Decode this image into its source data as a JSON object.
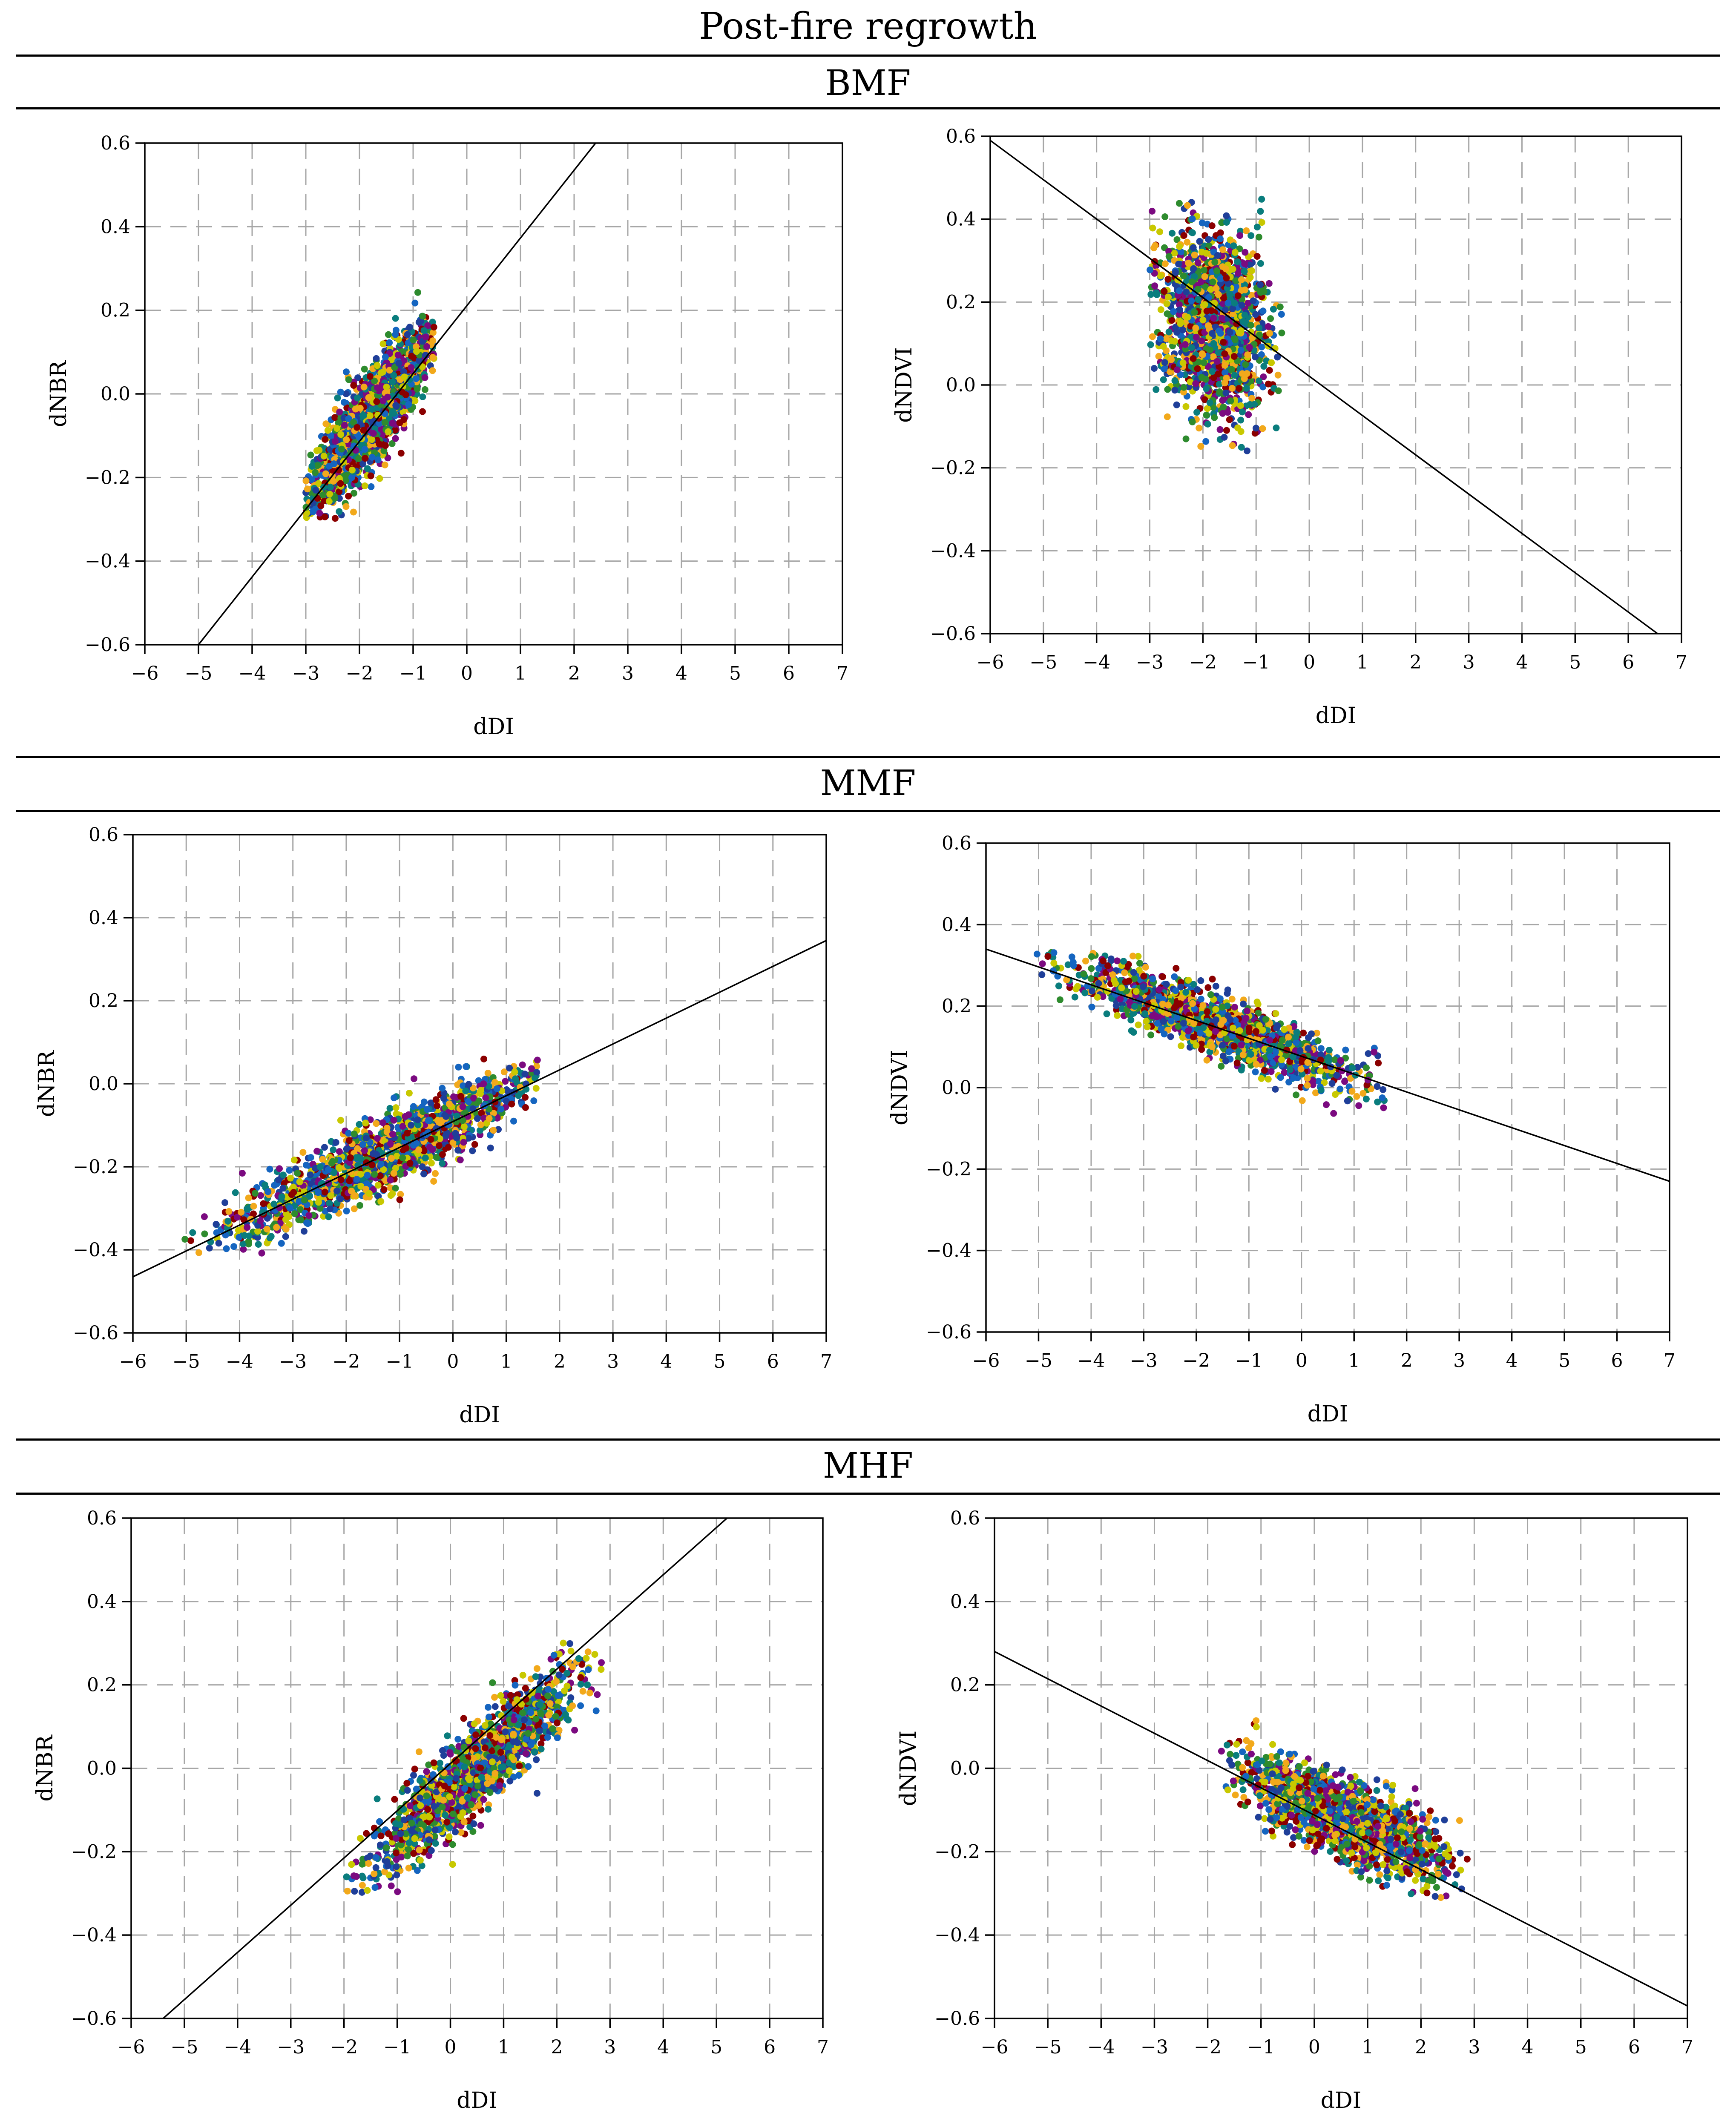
{
  "figure": {
    "title": "Post-fire regrowth",
    "sections": [
      "BMF",
      "MMF",
      "MHF"
    ]
  },
  "point_palette": [
    "#7b0a80",
    "#0a7d7d",
    "#1f3f99",
    "#f2a91b",
    "#2e8b2e",
    "#8b0000",
    "#c8c800",
    "#1565c0"
  ],
  "chart_data": [
    {
      "id": "bmf-dnbr",
      "section": "BMF",
      "type": "scatter",
      "xlabel": "dDI",
      "ylabel": "dNBR",
      "xlim": [
        -6,
        7
      ],
      "ylim": [
        -0.6,
        0.6
      ],
      "xticks": [
        -6,
        -5,
        -4,
        -3,
        -2,
        -1,
        0,
        1,
        2,
        3,
        4,
        5,
        6,
        7
      ],
      "yticks": [
        -0.6,
        -0.4,
        -0.2,
        0.0,
        0.2,
        0.4,
        0.6
      ],
      "grid": true,
      "fit_line": {
        "x": [
          -5.0,
          2.4
        ],
        "y": [
          -0.6,
          0.6
        ]
      },
      "cluster": {
        "center": [
          -1.8,
          -0.06
        ],
        "slope": 0.162,
        "spread_x": 0.6,
        "spread_y": 0.055,
        "x_range": [
          -3.0,
          -0.6
        ],
        "y_range": [
          -0.3,
          0.33
        ],
        "n": 1700
      }
    },
    {
      "id": "bmf-dndvi",
      "section": "BMF",
      "type": "scatter",
      "xlabel": "dDI",
      "ylabel": "dNDVI",
      "xlim": [
        -6,
        7
      ],
      "ylim": [
        -0.6,
        0.6
      ],
      "xticks": [
        -6,
        -5,
        -4,
        -3,
        -2,
        -1,
        0,
        1,
        2,
        3,
        4,
        5,
        6,
        7
      ],
      "yticks": [
        -0.6,
        -0.4,
        -0.2,
        0.0,
        0.2,
        0.4,
        0.6
      ],
      "grid": true,
      "fit_line": {
        "x": [
          -6.0,
          6.55
        ],
        "y": [
          0.59,
          -0.6
        ]
      },
      "cluster": {
        "center": [
          -1.8,
          0.15
        ],
        "slope": -0.03,
        "spread_x": 0.5,
        "spread_y": 0.11,
        "x_range": [
          -3.0,
          -0.5
        ],
        "y_range": [
          -0.23,
          0.45
        ],
        "n": 1700
      }
    },
    {
      "id": "mmf-dnbr",
      "section": "MMF",
      "type": "scatter",
      "xlabel": "dDI",
      "ylabel": "dNBR",
      "xlim": [
        -6,
        7
      ],
      "ylim": [
        -0.6,
        0.6
      ],
      "xticks": [
        -6,
        -5,
        -4,
        -3,
        -2,
        -1,
        0,
        1,
        2,
        3,
        4,
        5,
        6,
        7
      ],
      "yticks": [
        -0.6,
        -0.4,
        -0.2,
        0.0,
        0.2,
        0.4,
        0.6
      ],
      "grid": true,
      "fit_line": {
        "x": [
          -6.0,
          7.0
        ],
        "y": [
          -0.465,
          0.345
        ]
      },
      "cluster": {
        "center": [
          -1.3,
          -0.17
        ],
        "slope": 0.062,
        "spread_x": 1.4,
        "spread_y": 0.04,
        "x_range": [
          -5.1,
          1.6
        ],
        "y_range": [
          -0.42,
          0.06
        ],
        "n": 1700
      }
    },
    {
      "id": "mmf-dndvi",
      "section": "MMF",
      "type": "scatter",
      "xlabel": "dDI",
      "ylabel": "dNDVI",
      "xlim": [
        -6,
        7
      ],
      "ylim": [
        -0.6,
        0.6
      ],
      "xticks": [
        -6,
        -5,
        -4,
        -3,
        -2,
        -1,
        0,
        1,
        2,
        3,
        4,
        5,
        6,
        7
      ],
      "yticks": [
        -0.6,
        -0.4,
        -0.2,
        0.0,
        0.2,
        0.4,
        0.6
      ],
      "grid": true,
      "fit_line": {
        "x": [
          -6.0,
          7.0
        ],
        "y": [
          0.34,
          -0.23
        ]
      },
      "cluster": {
        "center": [
          -1.6,
          0.15
        ],
        "slope": -0.047,
        "spread_x": 1.3,
        "spread_y": 0.035,
        "x_range": [
          -5.1,
          1.6
        ],
        "y_range": [
          -0.08,
          0.34
        ],
        "n": 1700
      }
    },
    {
      "id": "mhf-dnbr",
      "section": "MHF",
      "type": "scatter",
      "xlabel": "dDI",
      "ylabel": "dNBR",
      "xlim": [
        -6,
        7
      ],
      "ylim": [
        -0.6,
        0.6
      ],
      "xticks": [
        -6,
        -5,
        -4,
        -3,
        -2,
        -1,
        0,
        1,
        2,
        3,
        4,
        5,
        6,
        7
      ],
      "yticks": [
        -0.6,
        -0.4,
        -0.2,
        0.0,
        0.2,
        0.4,
        0.6
      ],
      "grid": true,
      "fit_line": {
        "x": [
          -5.4,
          5.2
        ],
        "y": [
          -0.6,
          0.6
        ]
      },
      "cluster": {
        "center": [
          0.5,
          0.0
        ],
        "slope": 0.113,
        "spread_x": 0.95,
        "spread_y": 0.05,
        "x_range": [
          -2.0,
          2.9
        ],
        "y_range": [
          -0.3,
          0.31
        ],
        "n": 1700
      }
    },
    {
      "id": "mhf-dndvi",
      "section": "MHF",
      "type": "scatter",
      "xlabel": "dDI",
      "ylabel": "dNDVI",
      "xlim": [
        -6,
        7
      ],
      "ylim": [
        -0.6,
        0.6
      ],
      "xticks": [
        -6,
        -5,
        -4,
        -3,
        -2,
        -1,
        0,
        1,
        2,
        3,
        4,
        5,
        6,
        7
      ],
      "yticks": [
        -0.6,
        -0.4,
        -0.2,
        0.0,
        0.2,
        0.4,
        0.6
      ],
      "grid": true,
      "fit_line": {
        "x": [
          -6.0,
          7.0
        ],
        "y": [
          0.28,
          -0.57
        ]
      },
      "cluster": {
        "center": [
          0.6,
          -0.12
        ],
        "slope": -0.055,
        "spread_x": 0.95,
        "spread_y": 0.045,
        "x_range": [
          -1.8,
          2.9
        ],
        "y_range": [
          -0.31,
          0.18
        ],
        "n": 1700
      }
    }
  ]
}
